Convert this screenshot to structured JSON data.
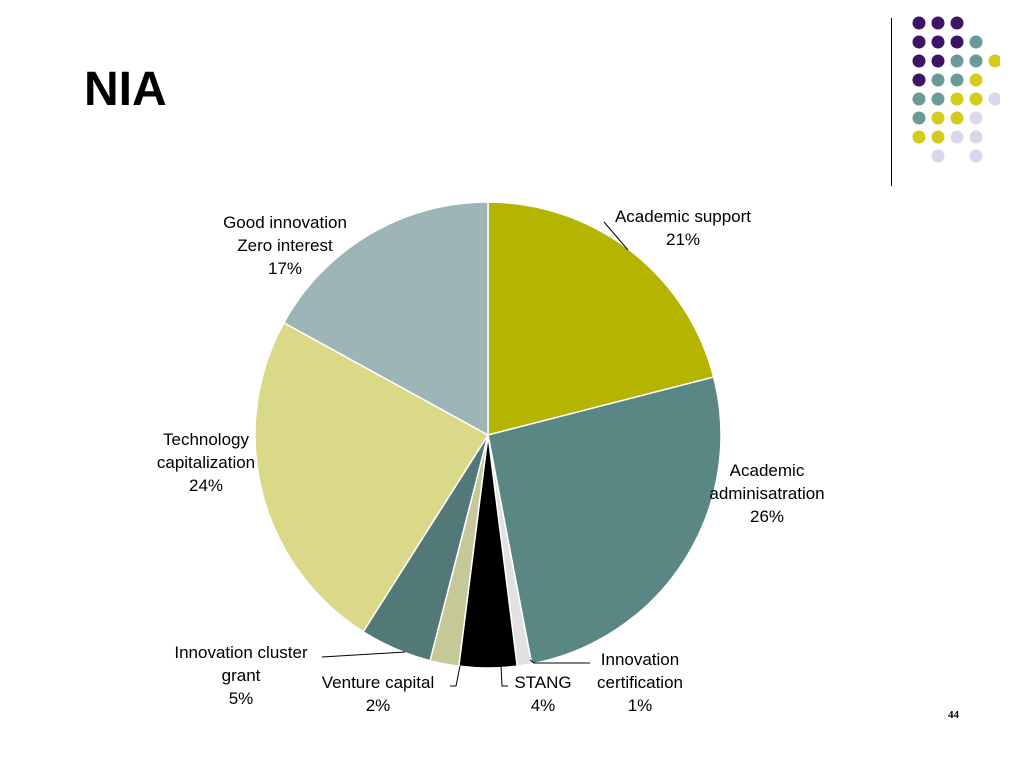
{
  "slide": {
    "title": "NIA",
    "page_number": "44"
  },
  "decoration": {
    "dot_colors": [
      "#3d1566",
      "#6a9b99",
      "#d4cc1a",
      "#d9d8ea"
    ]
  },
  "chart_data": {
    "type": "pie",
    "title": "",
    "slices": [
      {
        "name": "Academic support",
        "value": 21,
        "label_lines": [
          "Academic support",
          "21%"
        ],
        "color": "#b5b400"
      },
      {
        "name": "Academic adminisatration",
        "value": 26,
        "label_lines": [
          "Academic",
          "adminisatration",
          "26%"
        ],
        "color": "#5a8683"
      },
      {
        "name": "Innovation certification",
        "value": 1,
        "label_lines": [
          "Innovation",
          "certification",
          "1%"
        ],
        "color": "#e2e2e2"
      },
      {
        "name": "STANG",
        "value": 4,
        "label_lines": [
          "STANG",
          "4%"
        ],
        "color": "#000000"
      },
      {
        "name": "Venture capital",
        "value": 2,
        "label_lines": [
          "Venture capital",
          "2%"
        ],
        "color": "#c6c897"
      },
      {
        "name": "Innovation cluster grant",
        "value": 5,
        "label_lines": [
          "Innovation cluster",
          "grant",
          "5%"
        ],
        "color": "#527878"
      },
      {
        "name": "Technology capitalization",
        "value": 24,
        "label_lines": [
          "Technology",
          "capitalization",
          "24%"
        ],
        "color": "#d9d987"
      },
      {
        "name": "Good innovation Zero interest",
        "value": 17,
        "label_lines": [
          "Good innovation",
          "Zero interest",
          "17%"
        ],
        "color": "#9db5b7"
      }
    ]
  }
}
